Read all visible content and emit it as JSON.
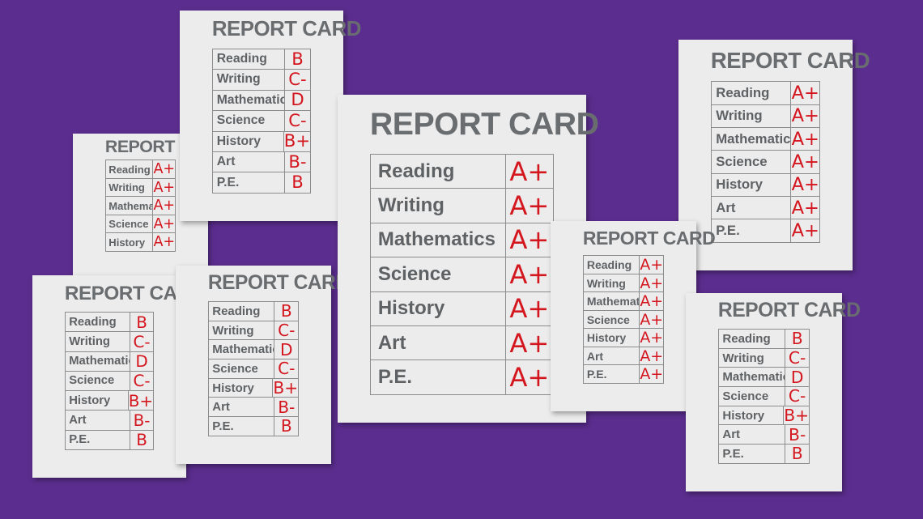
{
  "cards": [
    {
      "title": "REPORT CARD",
      "rows": [
        [
          "Reading",
          "A+"
        ],
        [
          "Writing",
          "A+"
        ],
        [
          "Mathematics",
          "A+"
        ],
        [
          "Science",
          "A+"
        ],
        [
          "History",
          "A+"
        ]
      ]
    },
    {
      "title": "REPORT CARD",
      "rows": [
        [
          "Reading",
          "B"
        ],
        [
          "Writing",
          "C-"
        ],
        [
          "Mathematics",
          "D"
        ],
        [
          "Science",
          "C-"
        ],
        [
          "History",
          "B+"
        ],
        [
          "Art",
          "B-"
        ],
        [
          "P.E.",
          "B"
        ]
      ]
    },
    {
      "title": "REPORT CARD",
      "rows": [
        [
          "Reading",
          "B"
        ],
        [
          "Writing",
          "C-"
        ],
        [
          "Mathematics",
          "D"
        ],
        [
          "Science",
          "C-"
        ],
        [
          "History",
          "B+"
        ],
        [
          "Art",
          "B-"
        ],
        [
          "P.E.",
          "B"
        ]
      ]
    },
    {
      "title": "REPORT CARD",
      "rows": [
        [
          "Reading",
          "B"
        ],
        [
          "Writing",
          "C-"
        ],
        [
          "Mathematics",
          "D"
        ],
        [
          "Science",
          "C-"
        ],
        [
          "History",
          "B+"
        ],
        [
          "Art",
          "B-"
        ],
        [
          "P.E.",
          "B"
        ]
      ]
    },
    {
      "title": "REPORT CARD",
      "rows": [
        [
          "Reading",
          "A+"
        ],
        [
          "Writing",
          "A+"
        ],
        [
          "Mathematics",
          "A+"
        ],
        [
          "Science",
          "A+"
        ],
        [
          "History",
          "A+"
        ],
        [
          "Art",
          "A+"
        ],
        [
          "P.E.",
          "A+"
        ]
      ]
    },
    {
      "title": "REPORT CARD",
      "rows": [
        [
          "Reading",
          "A+"
        ],
        [
          "Writing",
          "A+"
        ],
        [
          "Mathematics",
          "A+"
        ],
        [
          "Science",
          "A+"
        ],
        [
          "History",
          "A+"
        ],
        [
          "Art",
          "A+"
        ],
        [
          "P.E.",
          "A+"
        ]
      ]
    },
    {
      "title": "REPORT CARD",
      "rows": [
        [
          "Reading",
          "A+"
        ],
        [
          "Writing",
          "A+"
        ],
        [
          "Mathematics",
          "A+"
        ],
        [
          "Science",
          "A+"
        ],
        [
          "History",
          "A+"
        ],
        [
          "Art",
          "A+"
        ],
        [
          "P.E.",
          "A+"
        ]
      ]
    },
    {
      "title": "REPORT CARD",
      "rows": [
        [
          "Reading",
          "B"
        ],
        [
          "Writing",
          "C-"
        ],
        [
          "Mathematics",
          "D"
        ],
        [
          "Science",
          "C-"
        ],
        [
          "History",
          "B+"
        ],
        [
          "Art",
          "B-"
        ],
        [
          "P.E.",
          "B"
        ]
      ]
    }
  ]
}
